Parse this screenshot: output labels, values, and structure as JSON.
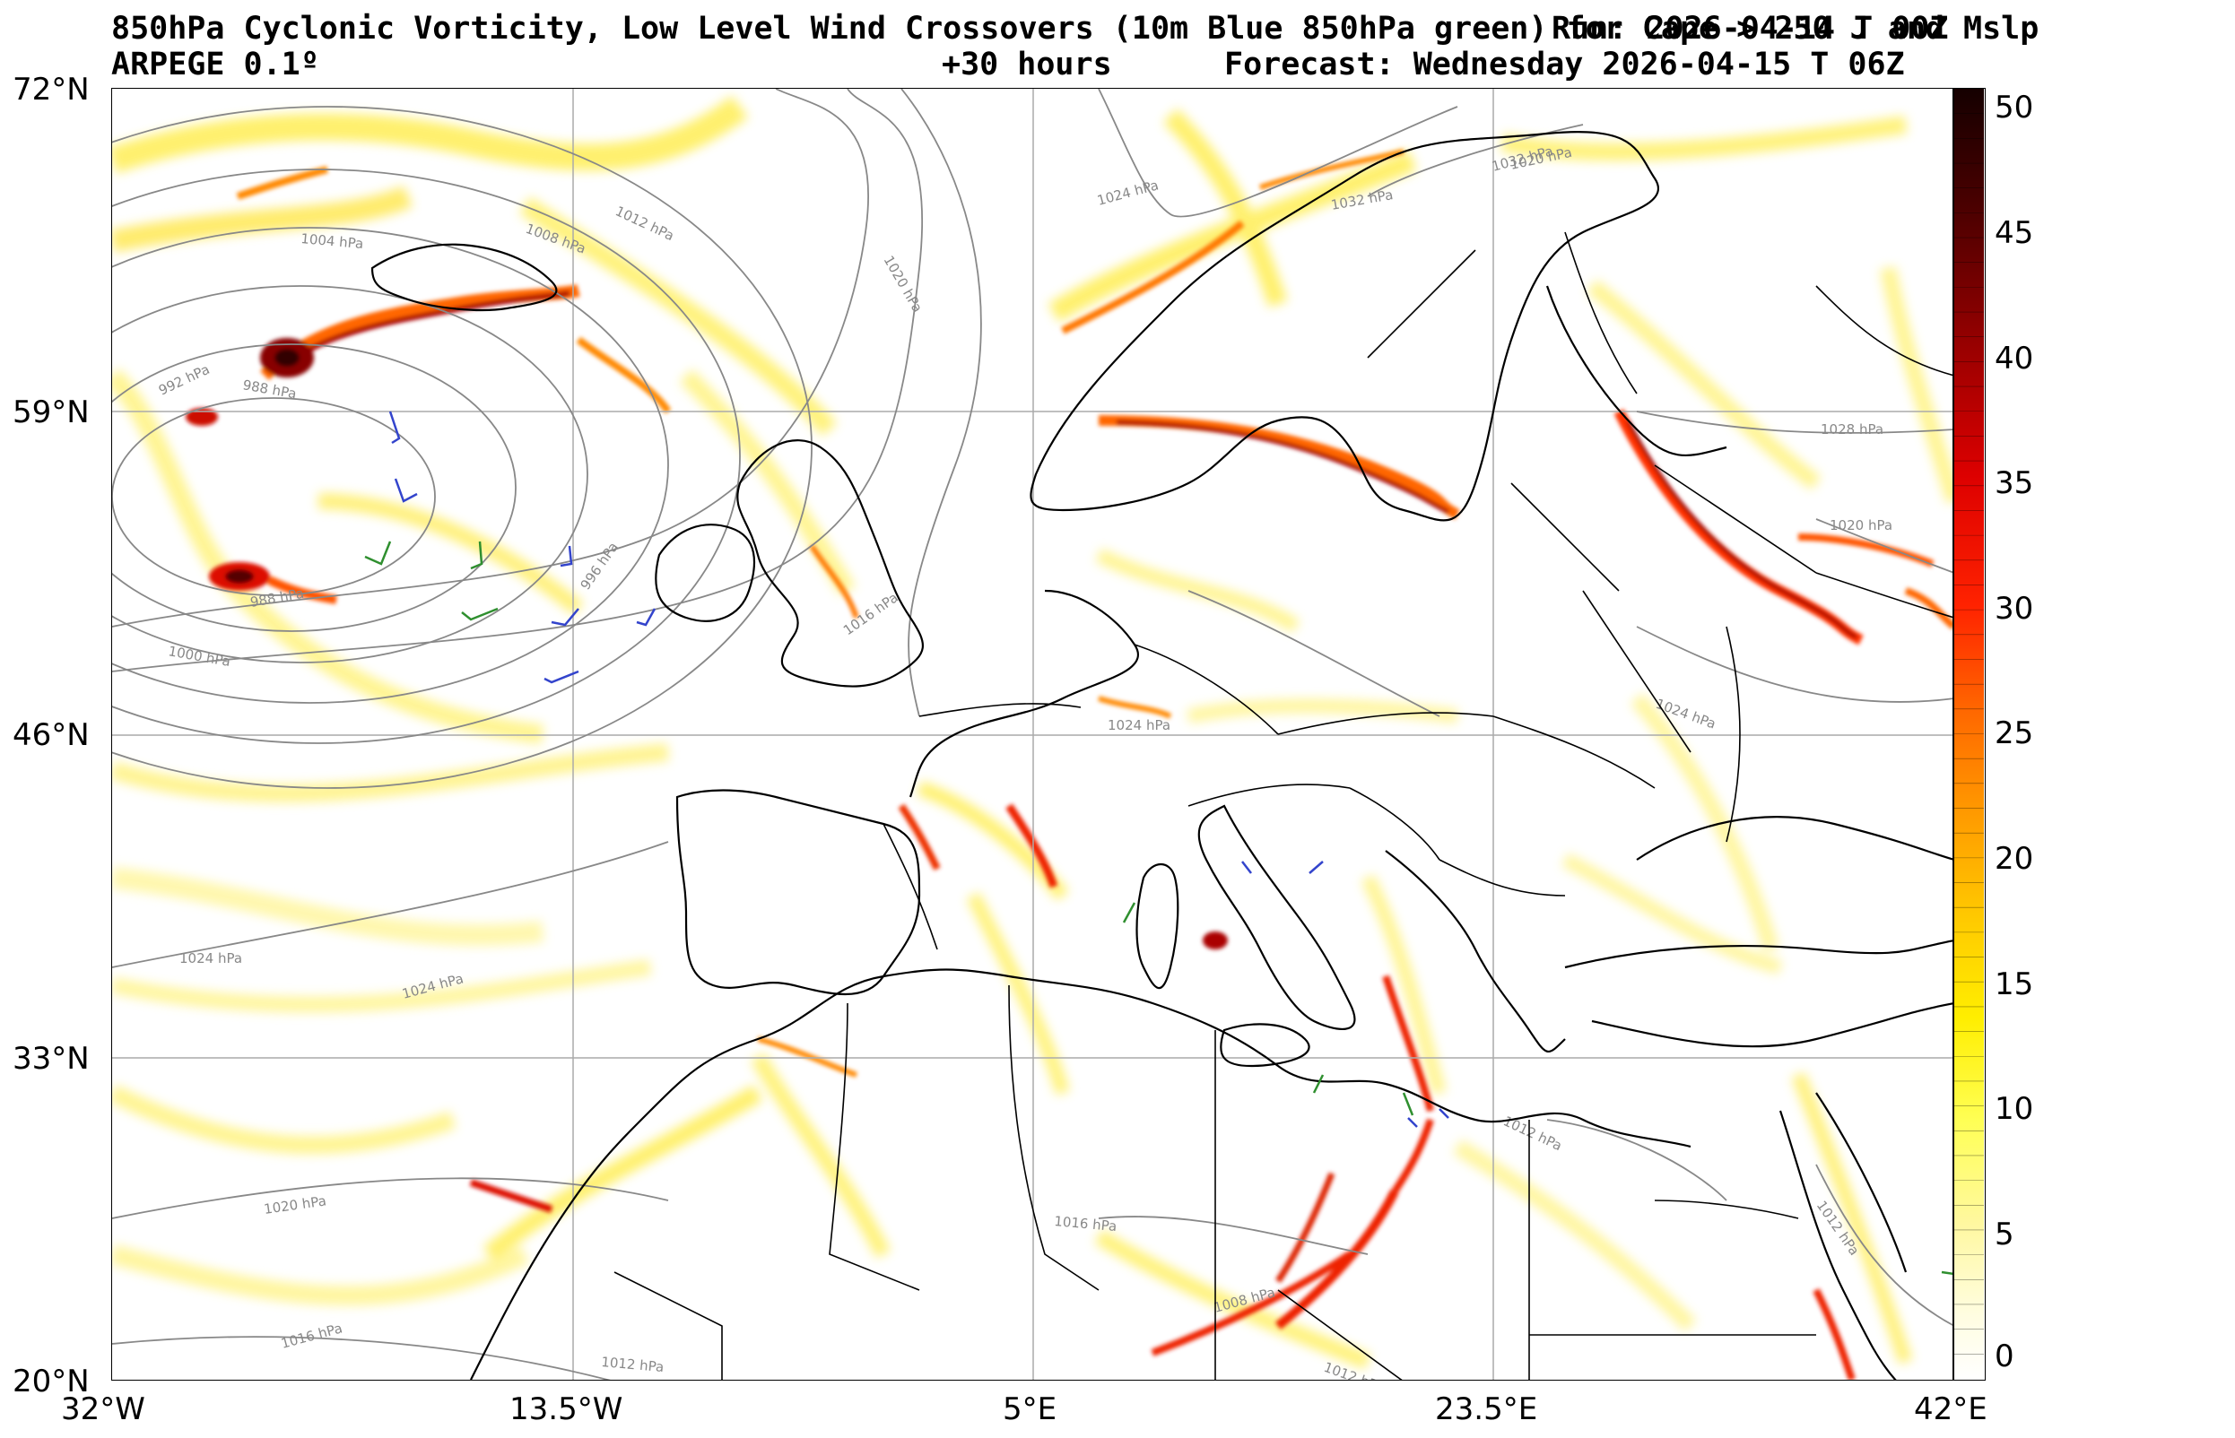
{
  "title": {
    "line1": "850hPa Cyclonic Vorticity, Low Level Wind Crossovers (10m Blue 850hPa green) for Cape > 250 J and Mslp",
    "run": "Run: 2026-04-14 T 00Z",
    "model": "ARPEGE 0.1º",
    "lead": "+30 hours",
    "forecast": "Forecast: Wednesday 2026-04-15 T 06Z"
  },
  "axes": {
    "lat_labels": [
      "72°N",
      "59°N",
      "46°N",
      "33°N",
      "20°N"
    ],
    "lon_labels": [
      "32°W",
      "13.5°W",
      "5°E",
      "23.5°E",
      "42°E"
    ]
  },
  "colorbar": {
    "ticks": [
      "50",
      "45",
      "40",
      "35",
      "30",
      "25",
      "20",
      "15",
      "10",
      "5",
      "0"
    ],
    "colors": [
      "#ffffff",
      "#fffcc0",
      "#ffff66",
      "#ffee00",
      "#ffcc00",
      "#ff9900",
      "#ff6600",
      "#ff2200",
      "#dd0000",
      "#990000",
      "#500000",
      "#1a0000"
    ]
  },
  "isobar_labels": [
    "1012 hPa",
    "1008 hPa",
    "1004 hPa",
    "1020 hPa",
    "1024 hPa",
    "1032 hPa",
    "1032 hPa",
    "992 hPa",
    "988 hPa",
    "996 hPa",
    "988 hPa",
    "1000 hPa",
    "1016 hPa",
    "1024 hPa",
    "1024 hPa",
    "1020 hPa",
    "1016 hPa",
    "1012 hPa",
    "1016 hPa",
    "1024 hPa",
    "1028 hPa",
    "1020 hPa",
    "1024 hPa",
    "1012 hPa",
    "1012 hPa",
    "1012 hPa",
    "1008 hPa",
    "1020 hPa"
  ]
}
